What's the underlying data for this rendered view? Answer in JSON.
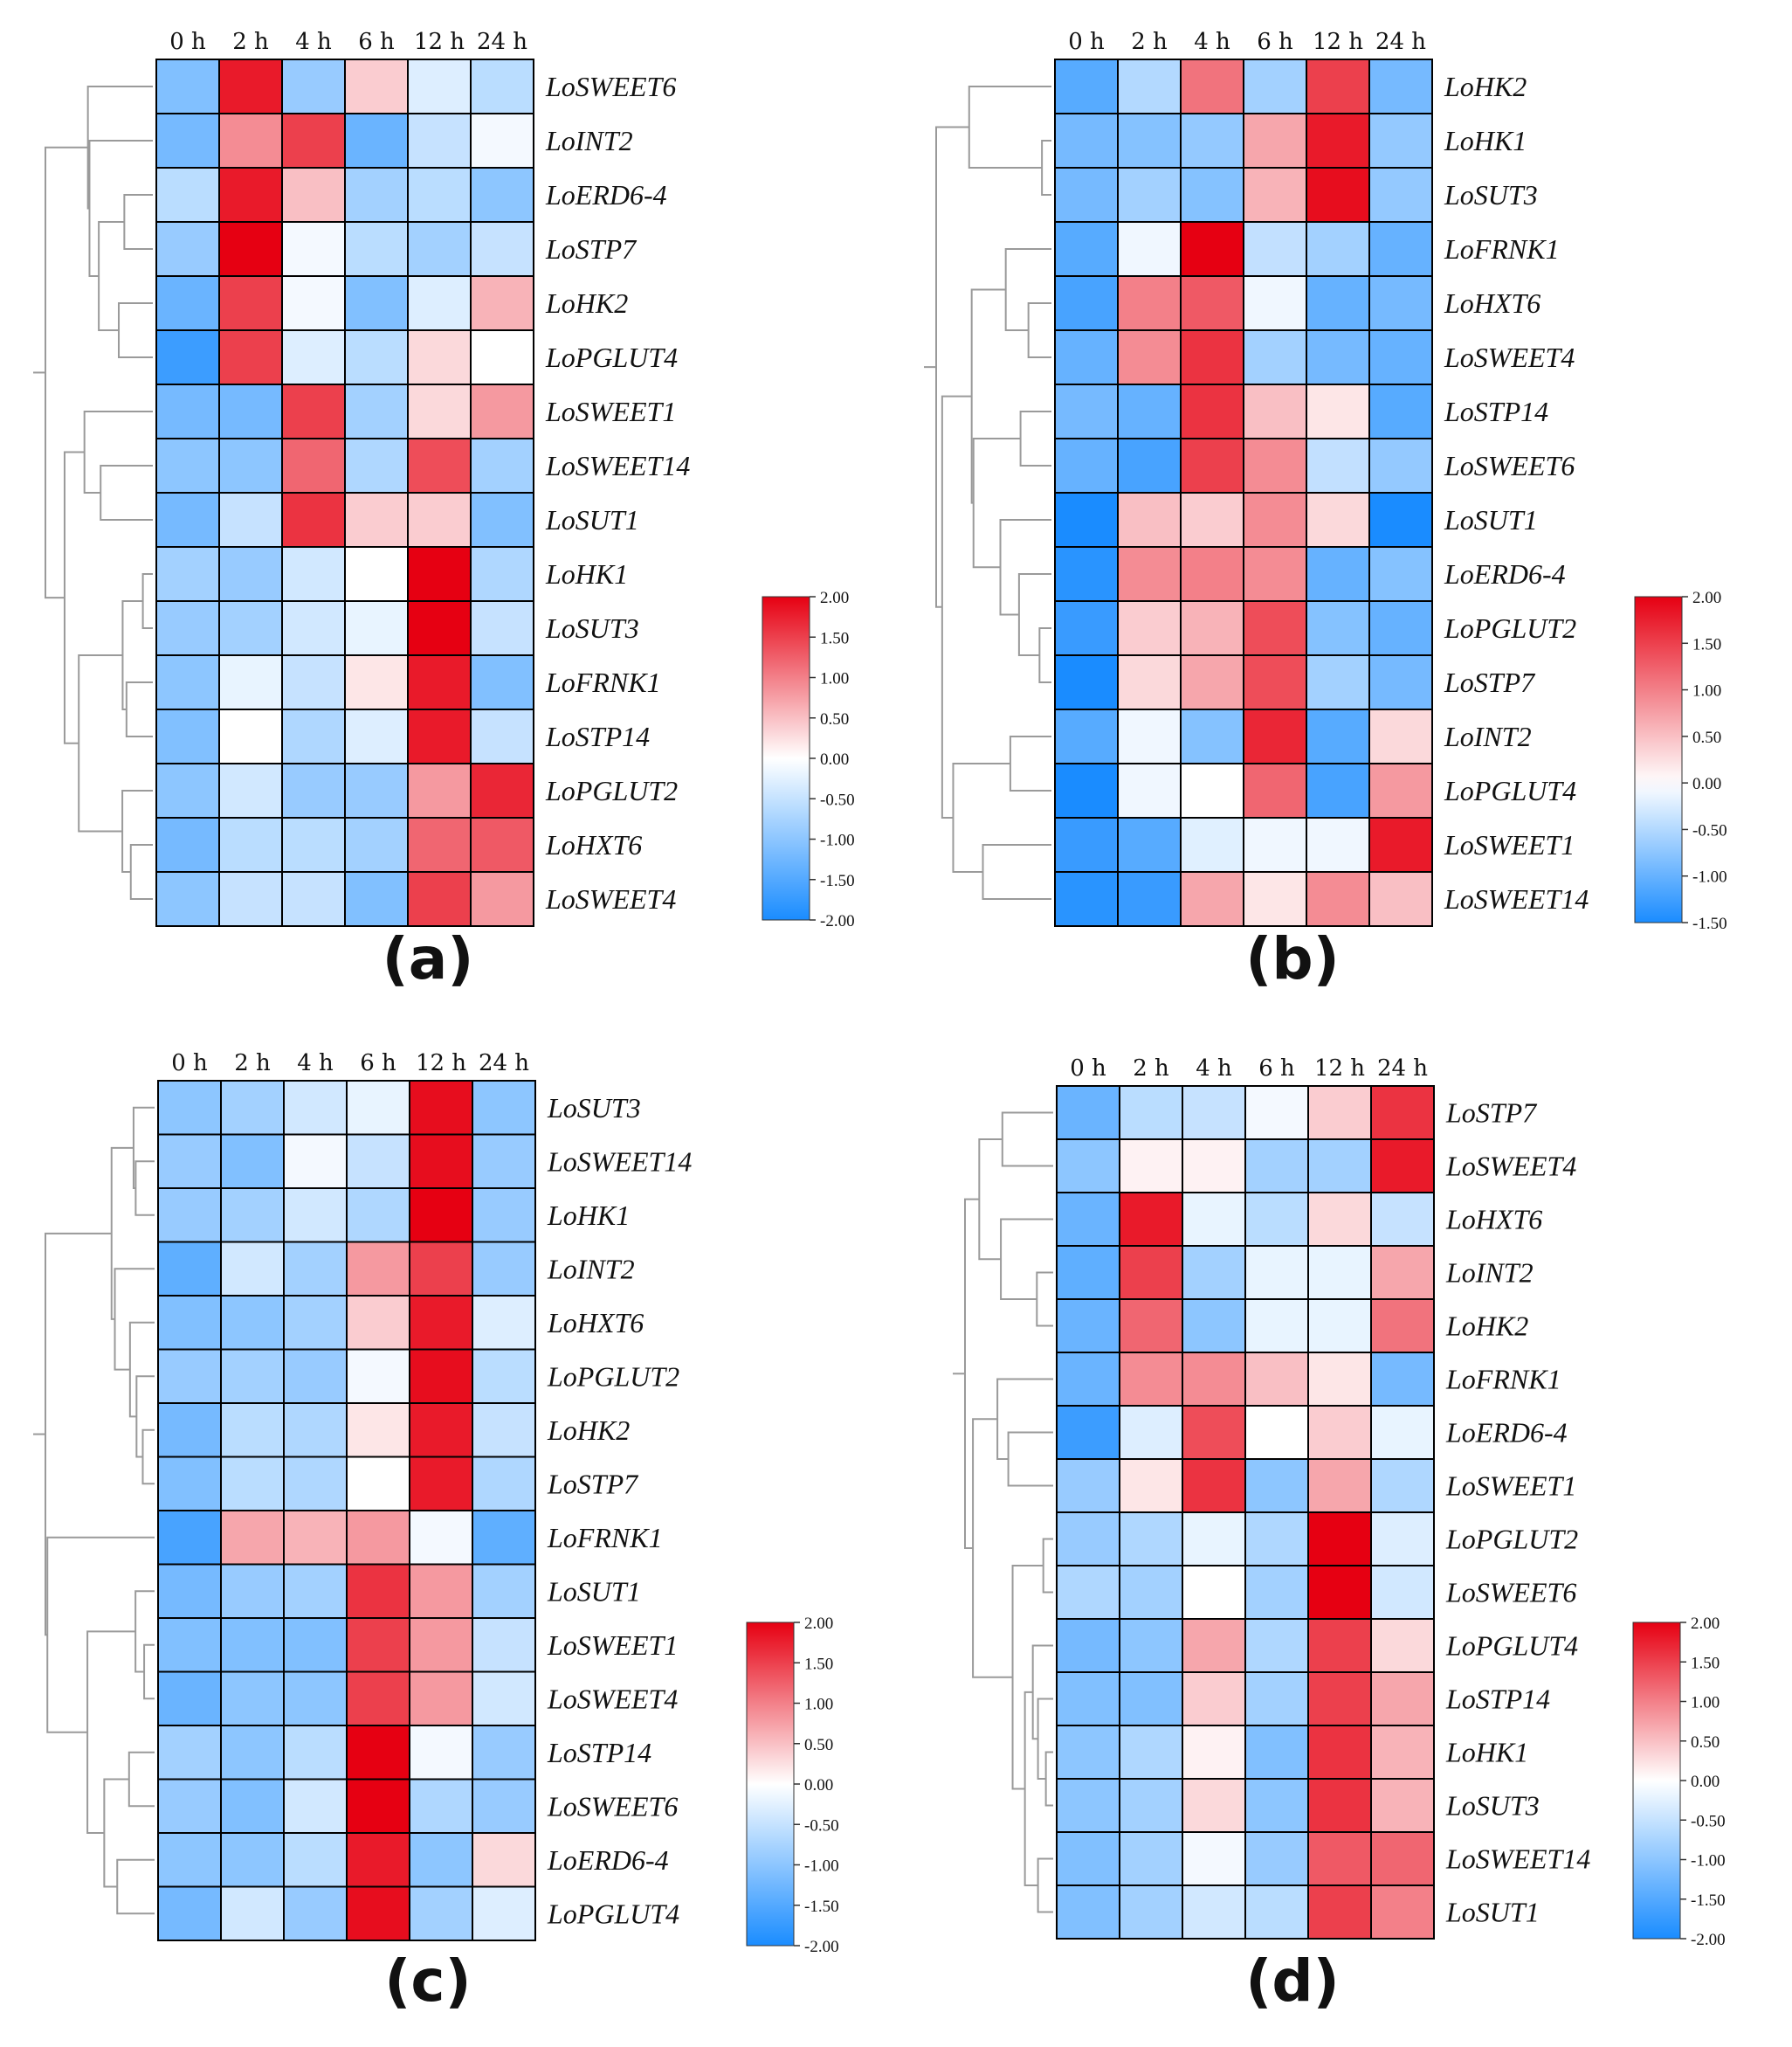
{
  "colors": {
    "low": "#1a8cff",
    "mid": "#ffffff",
    "high": "#e60012"
  },
  "chart_data": [
    {
      "panel": "(a)",
      "type": "heatmap",
      "title": "",
      "columns": [
        "0 h",
        "2 h",
        "4 h",
        "6 h",
        "12 h",
        "24 h"
      ],
      "rows": [
        "LoSWEET6",
        "LoINT2",
        "LoERD6-4",
        "LoSTP7",
        "LoHK2",
        "LoPGLUT4",
        "LoSWEET1",
        "LoSWEET14",
        "LoSUT1",
        "LoHK1",
        "LoSUT3",
        "LoFRNK1",
        "LoSTP14",
        "LoPGLUT2",
        "LoHXT6",
        "LoSWEET4"
      ],
      "values": [
        [
          -1.1,
          1.8,
          -0.9,
          0.4,
          -0.3,
          -0.6
        ],
        [
          -1.2,
          0.9,
          1.5,
          -1.3,
          -0.5,
          -0.1
        ],
        [
          -0.6,
          1.8,
          0.5,
          -0.8,
          -0.6,
          -1.0
        ],
        [
          -0.9,
          2.0,
          -0.1,
          -0.6,
          -0.8,
          -0.5
        ],
        [
          -1.3,
          1.5,
          -0.1,
          -1.1,
          -0.3,
          0.6
        ],
        [
          -1.7,
          1.5,
          -0.3,
          -0.6,
          0.3,
          0.0
        ],
        [
          -1.2,
          -1.2,
          1.5,
          -0.8,
          0.3,
          0.8
        ],
        [
          -1.0,
          -1.0,
          1.2,
          -0.7,
          1.4,
          -0.8
        ],
        [
          -1.2,
          -0.5,
          1.6,
          0.4,
          0.4,
          -1.1
        ],
        [
          -0.8,
          -0.9,
          -0.4,
          0.0,
          2.0,
          -0.7
        ],
        [
          -0.9,
          -0.8,
          -0.4,
          -0.2,
          2.0,
          -0.5
        ],
        [
          -1.0,
          -0.2,
          -0.5,
          0.2,
          1.8,
          -1.1
        ],
        [
          -1.1,
          0.0,
          -0.7,
          -0.3,
          1.8,
          -0.5
        ],
        [
          -1.0,
          -0.4,
          -0.9,
          -0.9,
          0.8,
          1.7
        ],
        [
          -1.2,
          -0.6,
          -0.6,
          -0.8,
          1.2,
          1.3
        ],
        [
          -1.0,
          -0.5,
          -0.5,
          -1.1,
          1.5,
          0.8
        ]
      ],
      "colorbar": {
        "ticks": [
          "2.00",
          "1.50",
          "1.00",
          "0.50",
          "0.00",
          "-0.50",
          "-1.00",
          "-1.50",
          "-2.00"
        ],
        "range": [
          -2.0,
          2.0
        ]
      }
    },
    {
      "panel": "(b)",
      "type": "heatmap",
      "title": "",
      "columns": [
        "0 h",
        "2 h",
        "4 h",
        "6 h",
        "12 h",
        "24 h"
      ],
      "rows": [
        "LoHK2",
        "LoHK1",
        "LoSUT3",
        "LoFRNK1",
        "LoHXT6",
        "LoSWEET4",
        "LoSTP14",
        "LoSWEET6",
        "LoSUT1",
        "LoERD6-4",
        "LoPGLUT2",
        "LoSTP7",
        "LoINT2",
        "LoPGLUT4",
        "LoSWEET1",
        "LoSWEET14"
      ],
      "values": [
        [
          -1.1,
          -0.5,
          1.1,
          -0.6,
          1.5,
          -0.9
        ],
        [
          -0.9,
          -0.8,
          -0.7,
          0.7,
          1.8,
          -0.7
        ],
        [
          -0.9,
          -0.6,
          -0.8,
          0.6,
          1.9,
          -0.7
        ],
        [
          -1.1,
          -0.1,
          2.0,
          -0.4,
          -0.6,
          -1.0
        ],
        [
          -1.2,
          1.0,
          1.3,
          -0.1,
          -1.0,
          -0.9
        ],
        [
          -1.0,
          0.9,
          1.6,
          -0.6,
          -0.9,
          -1.0
        ],
        [
          -0.9,
          -1.0,
          1.6,
          0.5,
          0.2,
          -1.1
        ],
        [
          -1.0,
          -1.2,
          1.5,
          0.9,
          -0.4,
          -0.7
        ],
        [
          -1.6,
          0.5,
          0.4,
          0.9,
          0.3,
          -1.5
        ],
        [
          -1.4,
          0.9,
          1.0,
          0.9,
          -1.0,
          -0.8
        ],
        [
          -1.3,
          0.4,
          0.6,
          1.4,
          -0.8,
          -1.0
        ],
        [
          -1.5,
          0.3,
          0.7,
          1.4,
          -0.6,
          -0.9
        ],
        [
          -1.1,
          -0.1,
          -0.8,
          1.7,
          -1.1,
          0.3
        ],
        [
          -1.5,
          -0.1,
          0.0,
          1.2,
          -1.2,
          0.8
        ],
        [
          -1.3,
          -1.1,
          -0.2,
          -0.1,
          -0.1,
          1.8
        ],
        [
          -1.4,
          -1.3,
          0.7,
          0.2,
          0.9,
          0.5
        ]
      ],
      "colorbar": {
        "ticks": [
          "2.00",
          "1.50",
          "1.00",
          "0.50",
          "0.00",
          "-0.50",
          "-1.00",
          "-1.50"
        ],
        "range": [
          -1.5,
          2.0
        ]
      }
    },
    {
      "panel": "(c)",
      "type": "heatmap",
      "title": "",
      "columns": [
        "0 h",
        "2 h",
        "4 h",
        "6 h",
        "12 h",
        "24 h"
      ],
      "rows": [
        "LoSUT3",
        "LoSWEET14",
        "LoHK1",
        "LoINT2",
        "LoHXT6",
        "LoPGLUT2",
        "LoHK2",
        "LoSTP7",
        "LoFRNK1",
        "LoSUT1",
        "LoSWEET1",
        "LoSWEET4",
        "LoSTP14",
        "LoSWEET6",
        "LoERD6-4",
        "LoPGLUT4"
      ],
      "values": [
        [
          -1.0,
          -0.8,
          -0.4,
          -0.2,
          1.9,
          -1.0
        ],
        [
          -0.9,
          -1.1,
          -0.1,
          -0.5,
          1.9,
          -0.9
        ],
        [
          -0.9,
          -0.8,
          -0.4,
          -0.7,
          2.0,
          -0.9
        ],
        [
          -1.4,
          -0.4,
          -0.8,
          0.8,
          1.5,
          -0.9
        ],
        [
          -1.1,
          -1.0,
          -0.8,
          0.4,
          1.8,
          -0.3
        ],
        [
          -0.9,
          -0.8,
          -0.9,
          -0.1,
          1.9,
          -0.6
        ],
        [
          -1.2,
          -0.6,
          -0.7,
          0.2,
          1.8,
          -0.5
        ],
        [
          -1.1,
          -0.6,
          -0.7,
          0.0,
          1.8,
          -0.7
        ],
        [
          -1.6,
          0.7,
          0.6,
          0.8,
          -0.1,
          -1.4
        ],
        [
          -1.2,
          -0.9,
          -0.8,
          1.6,
          0.8,
          -0.8
        ],
        [
          -1.1,
          -1.1,
          -1.1,
          1.5,
          0.8,
          -0.5
        ],
        [
          -1.3,
          -1.0,
          -1.0,
          1.5,
          0.8,
          -0.4
        ],
        [
          -0.8,
          -1.0,
          -0.6,
          2.0,
          -0.1,
          -0.9
        ],
        [
          -0.9,
          -1.1,
          -0.4,
          2.0,
          -0.7,
          -0.9
        ],
        [
          -1.0,
          -1.0,
          -0.6,
          1.8,
          -1.0,
          0.3
        ],
        [
          -1.2,
          -0.4,
          -0.9,
          1.9,
          -0.8,
          -0.3
        ]
      ],
      "colorbar": {
        "ticks": [
          "2.00",
          "1.50",
          "1.00",
          "0.50",
          "0.00",
          "-0.50",
          "-1.00",
          "-1.50",
          "-2.00"
        ],
        "range": [
          -2.0,
          2.0
        ]
      }
    },
    {
      "panel": "(d)",
      "type": "heatmap",
      "title": "",
      "columns": [
        "0 h",
        "2 h",
        "4 h",
        "6 h",
        "12 h",
        "24 h"
      ],
      "rows": [
        "LoSTP7",
        "LoSWEET4",
        "LoHXT6",
        "LoINT2",
        "LoHK2",
        "LoFRNK1",
        "LoERD6-4",
        "LoSWEET1",
        "LoPGLUT2",
        "LoSWEET6",
        "LoPGLUT4",
        "LoSTP14",
        "LoHK1",
        "LoSUT3",
        "LoSWEET14",
        "LoSUT1"
      ],
      "values": [
        [
          -1.3,
          -0.6,
          -0.5,
          -0.1,
          0.4,
          1.6
        ],
        [
          -1.0,
          0.1,
          0.1,
          -0.8,
          -0.8,
          1.8
        ],
        [
          -1.3,
          1.8,
          -0.2,
          -0.6,
          0.3,
          -0.5
        ],
        [
          -1.4,
          1.5,
          -0.8,
          -0.2,
          -0.2,
          0.7
        ],
        [
          -1.3,
          1.2,
          -1.0,
          -0.2,
          -0.2,
          1.1
        ],
        [
          -1.3,
          0.9,
          0.9,
          0.5,
          0.2,
          -1.2
        ],
        [
          -1.7,
          -0.3,
          1.4,
          0.0,
          0.4,
          -0.2
        ],
        [
          -0.9,
          0.2,
          1.6,
          -1.0,
          0.7,
          -0.7
        ],
        [
          -0.9,
          -0.7,
          -0.2,
          -0.7,
          2.0,
          -0.3
        ],
        [
          -0.7,
          -0.8,
          0.0,
          -0.8,
          2.0,
          -0.4
        ],
        [
          -1.2,
          -1.0,
          0.7,
          -0.7,
          1.5,
          0.3
        ],
        [
          -1.1,
          -1.1,
          0.4,
          -0.8,
          1.5,
          0.7
        ],
        [
          -1.0,
          -0.7,
          0.1,
          -1.1,
          1.6,
          0.6
        ],
        [
          -1.0,
          -0.8,
          0.3,
          -1.0,
          1.6,
          0.6
        ],
        [
          -1.1,
          -0.8,
          -0.1,
          -0.9,
          1.3,
          1.2
        ],
        [
          -1.1,
          -0.8,
          -0.4,
          -0.6,
          1.5,
          1.0
        ]
      ],
      "colorbar": {
        "ticks": [
          "2.00",
          "1.50",
          "1.00",
          "0.50",
          "0.00",
          "-0.50",
          "-1.00",
          "-1.50",
          "-2.00"
        ],
        "range": [
          -2.0,
          2.0
        ]
      }
    }
  ]
}
